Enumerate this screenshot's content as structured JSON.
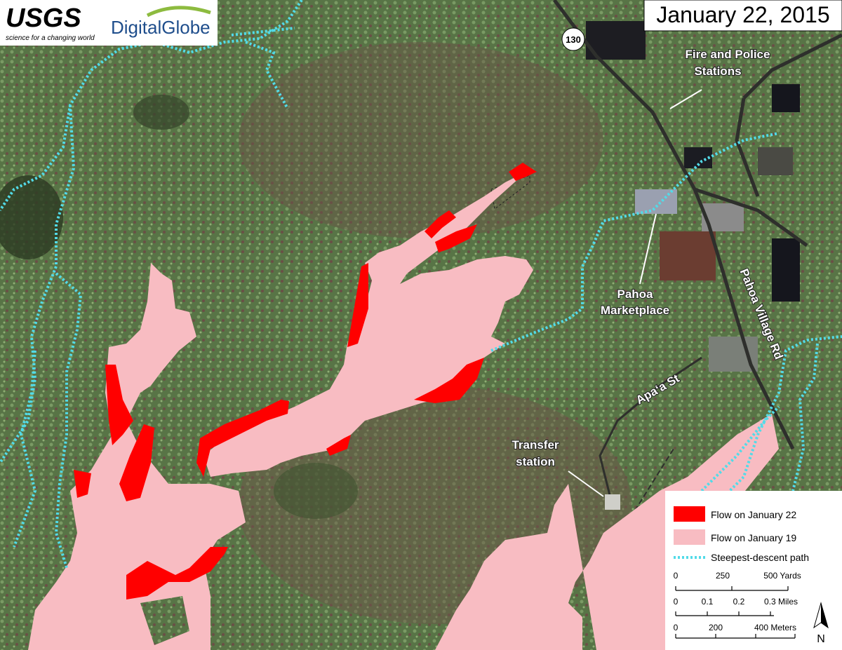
{
  "header": {
    "usgs": "USGS",
    "usgs_tagline": "science for a changing world",
    "digitalglobe": "DigitalGlobe",
    "date": "January 22, 2015"
  },
  "labels": {
    "route": "130",
    "fire_police": [
      "Fire and Police",
      "Stations"
    ],
    "marketplace": [
      "Pahoa",
      "Marketplace"
    ],
    "transfer": [
      "Transfer",
      "station"
    ],
    "pahoa_village_rd": "Pahoa Village Rd",
    "apaa_st": "Apa‘a St"
  },
  "legend": {
    "items": [
      "Flow on January 22",
      "Flow on January 19",
      "Steepest-descent path"
    ]
  },
  "scale_bars": [
    {
      "labels": [
        "0",
        "250",
        "500 Yards"
      ]
    },
    {
      "labels": [
        "0",
        "0.1",
        "0.2",
        "0.3 Miles"
      ]
    },
    {
      "labels": [
        "0",
        "200",
        "400 Meters"
      ]
    }
  ],
  "north": "N"
}
